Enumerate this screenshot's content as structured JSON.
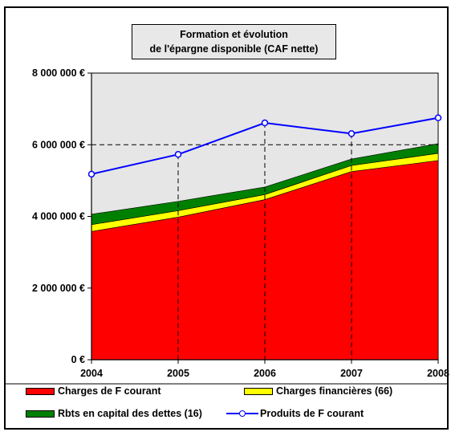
{
  "chart_data": {
    "type": "area",
    "title_line1": "Formation et évolution",
    "title_line2": "de l'épargne disponible (CAF nette)",
    "x": [
      "2004",
      "2005",
      "2006",
      "2007",
      "2008"
    ],
    "y_ticks": [
      "0 €",
      "2 000 000 €",
      "4 000 000 €",
      "6 000 000 €",
      "8 000 000 €"
    ],
    "ylim": [
      0,
      8000000
    ],
    "stacked_series": [
      {
        "name": "Charges de F courant",
        "color": "#ff0000",
        "values": [
          3580000,
          3980000,
          4470000,
          5250000,
          5560000
        ]
      },
      {
        "name": "Charges financières (66)",
        "color": "#ffff00",
        "values": [
          190000,
          180000,
          140000,
          170000,
          200000
        ]
      },
      {
        "name": "Rbts en capital des dettes (16)",
        "color": "#008000",
        "values": [
          290000,
          260000,
          210000,
          180000,
          270000
        ]
      }
    ],
    "line_series": {
      "name": "Produits de F courant",
      "color": "#0000ff",
      "values": [
        5180000,
        5730000,
        6610000,
        6310000,
        6750000
      ]
    },
    "plot_background": "#e6e6e6",
    "gridlines": "dashed at 6 000 000 € and 8 000 000 €, dashed verticals at each year",
    "legend_position": "bottom"
  }
}
